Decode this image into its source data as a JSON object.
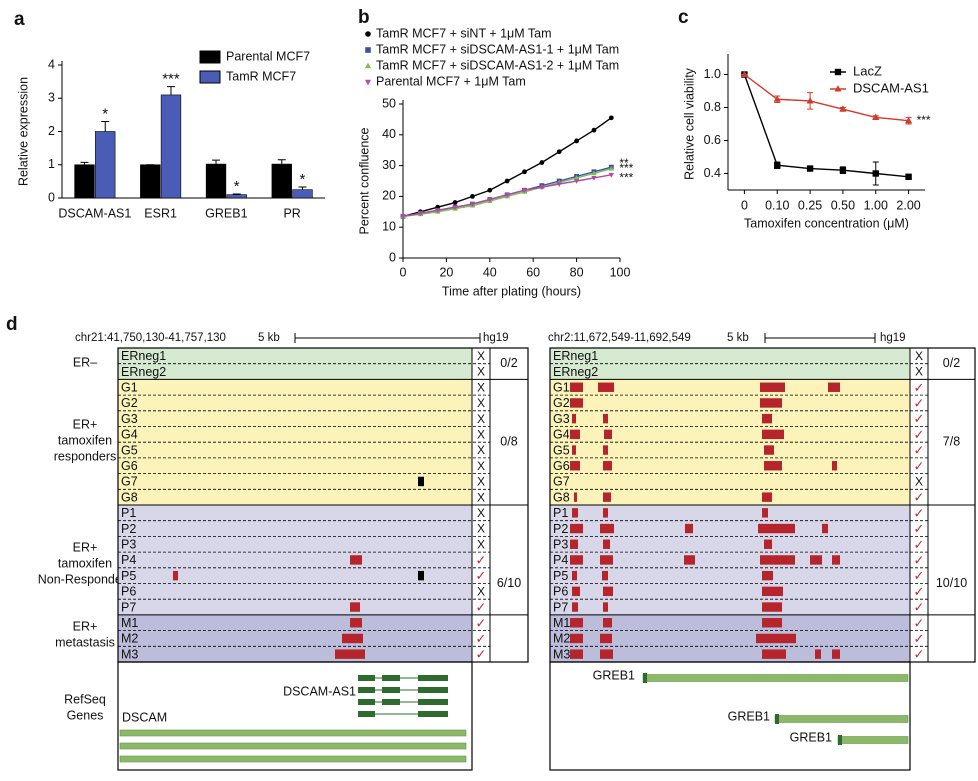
{
  "chart_data": [
    {
      "type": "bar",
      "label": "a",
      "ylabel": "Relative expression",
      "categories": [
        "DSCAM-AS1",
        "ESR1",
        "GREB1",
        "PR"
      ],
      "series": [
        {
          "name": "Parental MCF7",
          "color": "#000000",
          "values": [
            1.0,
            1.0,
            1.02,
            1.02
          ],
          "errors": [
            0.07,
            0,
            0.12,
            0.13
          ]
        },
        {
          "name": "TamR MCF7",
          "color": "#4a5cb5",
          "values": [
            2.0,
            3.1,
            0.1,
            0.25
          ],
          "errors": [
            0.3,
            0.25,
            0.02,
            0.08
          ],
          "annotations": [
            "*",
            "***",
            "*",
            "*"
          ]
        }
      ],
      "ylim": [
        0,
        4
      ],
      "yticks": [
        0,
        1,
        2,
        3,
        4
      ]
    },
    {
      "type": "line",
      "label": "b",
      "xlabel": "Time after plating (hours)",
      "ylabel": "Percent confluence",
      "x": [
        0,
        8,
        16,
        24,
        32,
        40,
        48,
        56,
        64,
        72,
        80,
        88,
        96
      ],
      "series": [
        {
          "name": "TamR MCF7 + siNT + 1μM Tam",
          "color": "#000000",
          "marker": "circle",
          "values": [
            13.5,
            15,
            16.5,
            18,
            20,
            22,
            25,
            28,
            31,
            34.5,
            38,
            41.5,
            45.5
          ]
        },
        {
          "name": "TamR MCF7 + siDSCAM-AS1-1 + 1μM Tam",
          "color": "#3b4fa8",
          "marker": "square",
          "values": [
            13.5,
            14.5,
            15.5,
            16.5,
            17.5,
            19,
            20.5,
            22,
            23.5,
            25,
            26.5,
            28,
            29.5
          ],
          "annotation": "**"
        },
        {
          "name": "TamR MCF7 + siDSCAM-AS1-2  + 1μM Tam",
          "color": "#7cc04a",
          "marker": "triangle",
          "values": [
            13.5,
            14.2,
            15,
            16,
            17,
            18.5,
            20,
            21.5,
            23,
            24.5,
            26,
            27.5,
            29
          ],
          "annotation": "***"
        },
        {
          "name": "Parental MCF7 + 1μM Tam",
          "color": "#b04aa8",
          "marker": "triangle-down",
          "values": [
            13.5,
            14.5,
            15.5,
            16.5,
            17.5,
            19,
            20.5,
            22,
            23,
            24,
            25,
            26,
            27
          ],
          "annotation": "***"
        }
      ],
      "xlim": [
        0,
        100
      ],
      "xticks": [
        0,
        20,
        40,
        60,
        80,
        100
      ],
      "ylim": [
        0,
        50
      ],
      "yticks": [
        0,
        10,
        20,
        30,
        40,
        50
      ]
    },
    {
      "type": "line",
      "label": "c",
      "xlabel": "Tamoxifen concentration (μM)",
      "ylabel": "Relative cell viability",
      "categories": [
        "0",
        "0.10",
        "0.25",
        "0.50",
        "1.00",
        "2.00"
      ],
      "series": [
        {
          "name": "LacZ",
          "color": "#000000",
          "marker": "square",
          "values": [
            1.0,
            0.45,
            0.43,
            0.42,
            0.4,
            0.38
          ],
          "errors": [
            0,
            0.02,
            0.01,
            0.02,
            0.07,
            0.01
          ]
        },
        {
          "name": "DSCAM-AS1",
          "color": "#d23a2a",
          "marker": "triangle",
          "values": [
            1.0,
            0.85,
            0.84,
            0.79,
            0.74,
            0.72
          ],
          "errors": [
            0,
            0.02,
            0.05,
            0.01,
            0.01,
            0.02
          ],
          "annotation": "***"
        }
      ],
      "ylim": [
        0.3,
        1.1
      ],
      "yticks": [
        0.4,
        0.6,
        0.8,
        {
          "value": 1.0,
          "label": "1.0"
        }
      ]
    }
  ],
  "panel_d": {
    "label": "d",
    "groups": [
      [
        "ER–"
      ],
      [
        "ER+",
        "tamoxifen",
        "responders"
      ],
      [
        "ER+",
        "tamoxifen",
        "Non-Responders"
      ],
      [
        "ER+",
        "metastasis"
      ]
    ],
    "genes_label": [
      "RefSeq",
      "Genes"
    ],
    "tracks": [
      {
        "region": "chr21:41,750,130-41,757,130",
        "scale": "5 kb",
        "genome": "hg19",
        "sections": [
          {
            "fraction": "0/2",
            "rows": [
              {
                "name": "ERneg1",
                "call": "X"
              },
              {
                "name": "ERneg2",
                "call": "X"
              }
            ]
          },
          {
            "fraction": "0/8",
            "rows": [
              {
                "name": "G1",
                "call": "X"
              },
              {
                "name": "G2",
                "call": "X"
              },
              {
                "name": "G3",
                "call": "X"
              },
              {
                "name": "G4",
                "call": "X"
              },
              {
                "name": "G5",
                "call": "X"
              },
              {
                "name": "G6",
                "call": "X"
              },
              {
                "name": "G7",
                "call": "X"
              },
              {
                "name": "G8",
                "call": "X"
              }
            ]
          },
          {
            "fraction": "6/10",
            "rows": [
              {
                "name": "P1",
                "call": "X"
              },
              {
                "name": "P2",
                "call": "X"
              },
              {
                "name": "P3",
                "call": "X"
              },
              {
                "name": "P4",
                "call": "✓"
              },
              {
                "name": "P5",
                "call": "✓"
              },
              {
                "name": "P6",
                "call": "X"
              },
              {
                "name": "P7",
                "call": "✓"
              }
            ]
          },
          {
            "fraction": "",
            "rows": [
              {
                "name": "M1",
                "call": "✓"
              },
              {
                "name": "M2",
                "call": "✓"
              },
              {
                "name": "M3",
                "call": "✓"
              }
            ]
          }
        ],
        "genes": [
          "DSCAM-AS1",
          "DSCAM"
        ]
      },
      {
        "region": "chr2:11,672,549-11,692,549",
        "scale": "5 kb",
        "genome": "hg19",
        "sections": [
          {
            "fraction": "0/2",
            "rows": [
              {
                "name": "ERneg1",
                "call": "X"
              },
              {
                "name": "ERneg2",
                "call": "X"
              }
            ]
          },
          {
            "fraction": "7/8",
            "rows": [
              {
                "name": "G1",
                "call": "✓"
              },
              {
                "name": "G2",
                "call": "✓"
              },
              {
                "name": "G3",
                "call": "✓"
              },
              {
                "name": "G4",
                "call": "✓"
              },
              {
                "name": "G5",
                "call": "✓"
              },
              {
                "name": "G6",
                "call": "✓"
              },
              {
                "name": "G7",
                "call": "X"
              },
              {
                "name": "G8",
                "call": "✓"
              }
            ]
          },
          {
            "fraction": "10/10",
            "rows": [
              {
                "name": "P1",
                "call": "✓"
              },
              {
                "name": "P2",
                "call": "✓"
              },
              {
                "name": "P3",
                "call": "✓"
              },
              {
                "name": "P4",
                "call": "✓"
              },
              {
                "name": "P5",
                "call": "✓"
              },
              {
                "name": "P6",
                "call": "✓"
              },
              {
                "name": "P7",
                "call": "✓"
              }
            ]
          },
          {
            "fraction": "",
            "rows": [
              {
                "name": "M1",
                "call": "✓"
              },
              {
                "name": "M2",
                "call": "✓"
              },
              {
                "name": "M3",
                "call": "✓"
              }
            ]
          }
        ],
        "genes": [
          "GREB1",
          "GREB1",
          "GREB1"
        ]
      }
    ]
  }
}
